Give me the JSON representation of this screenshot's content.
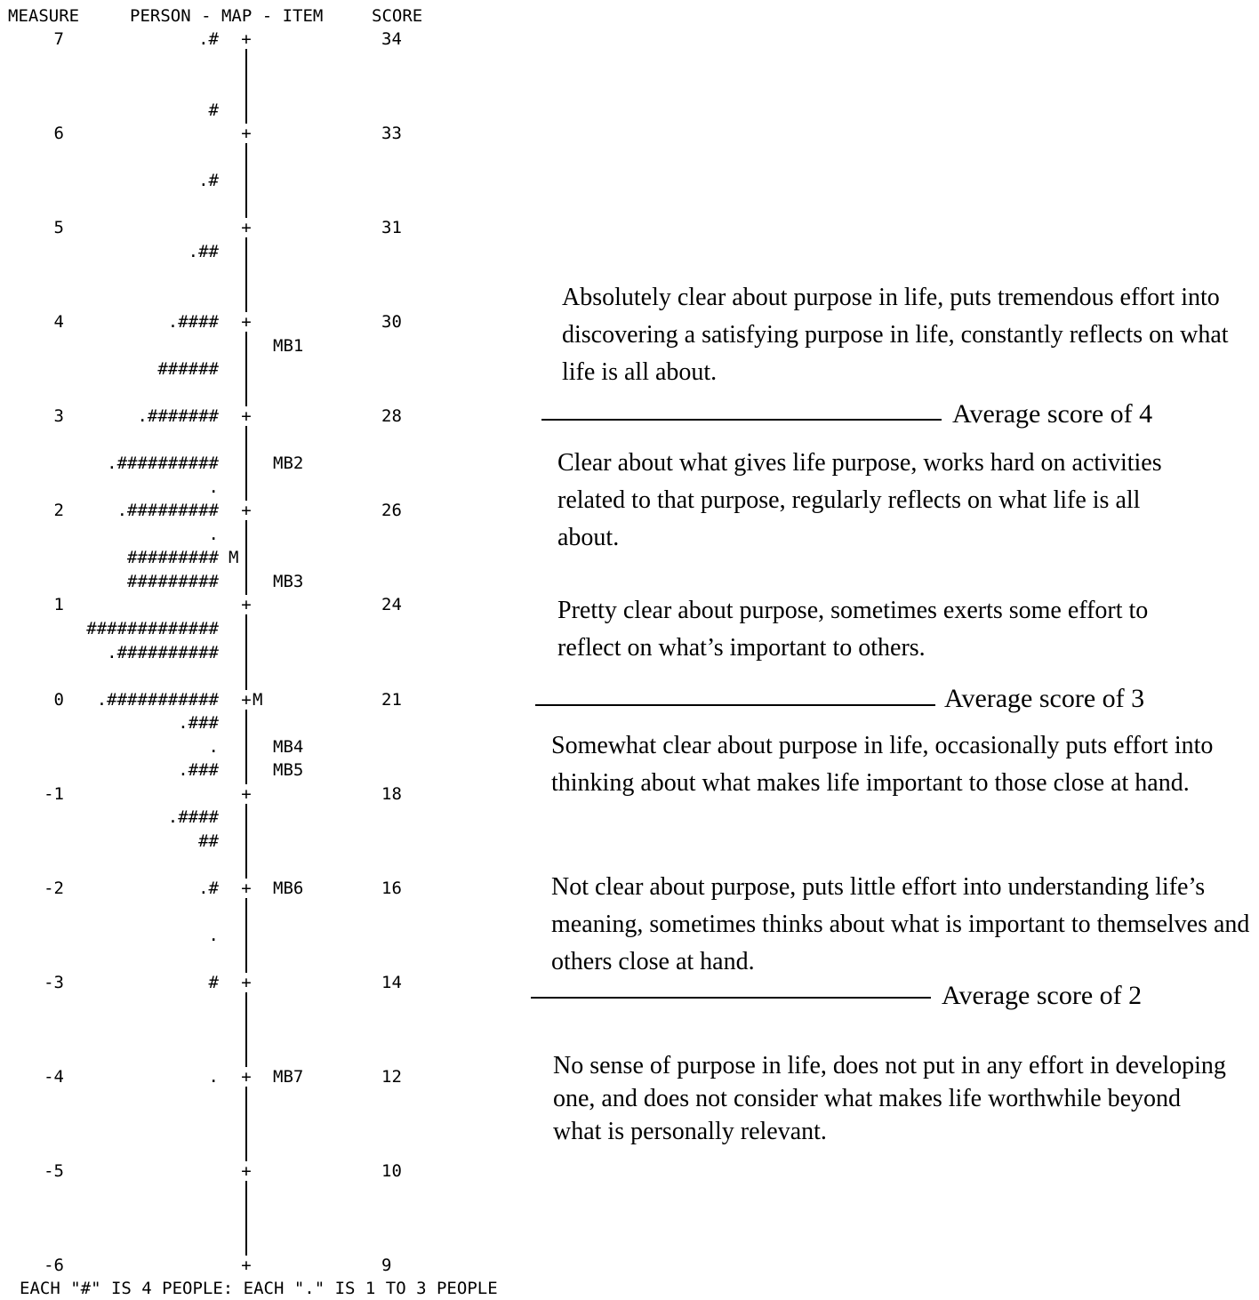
{
  "chart_data": {
    "type": "table",
    "headers": {
      "measure": "MEASURE",
      "map": "PERSON - MAP - ITEM",
      "score": "SCORE"
    },
    "measure_rows": [
      {
        "measure": "7",
        "score": "34"
      },
      {
        "measure": "6",
        "score": "33"
      },
      {
        "measure": "5",
        "score": "31"
      },
      {
        "measure": "4",
        "score": "30"
      },
      {
        "measure": "3",
        "score": "28"
      },
      {
        "measure": "2",
        "score": "26"
      },
      {
        "measure": "1",
        "score": "24"
      },
      {
        "measure": "0",
        "score": "21"
      },
      {
        "measure": "-1",
        "score": "18"
      },
      {
        "measure": "-2",
        "score": "16"
      },
      {
        "measure": "-3",
        "score": "14"
      },
      {
        "measure": "-4",
        "score": "12"
      },
      {
        "measure": "-5",
        "score": "10"
      },
      {
        "measure": "-6",
        "score": "9"
      }
    ],
    "person_rows": [
      {
        "measure": 7.0,
        "text": ".#"
      },
      {
        "measure": 6.25,
        "text": "#"
      },
      {
        "measure": 5.5,
        "text": ".#"
      },
      {
        "measure": 4.75,
        "text": ".##"
      },
      {
        "measure": 4.0,
        "text": ".####"
      },
      {
        "measure": 3.5,
        "text": "######"
      },
      {
        "measure": 3.0,
        "text": ".#######"
      },
      {
        "measure": 2.5,
        "text": ".##########"
      },
      {
        "measure": 2.25,
        "text": "."
      },
      {
        "measure": 2.0,
        "text": ".#########"
      },
      {
        "measure": 1.75,
        "text": "."
      },
      {
        "measure": 1.5,
        "text": "#########"
      },
      {
        "measure": 1.25,
        "text": "#########"
      },
      {
        "measure": 0.75,
        "text": "#############"
      },
      {
        "measure": 0.5,
        "text": ".##########"
      },
      {
        "measure": 0.0,
        "text": ".###########"
      },
      {
        "measure": -0.25,
        "text": ".###"
      },
      {
        "measure": -0.5,
        "text": "."
      },
      {
        "measure": -0.75,
        "text": ".###"
      },
      {
        "measure": -1.25,
        "text": ".####"
      },
      {
        "measure": -1.5,
        "text": "##"
      },
      {
        "measure": -2.0,
        "text": ".#"
      },
      {
        "measure": -2.5,
        "text": "."
      },
      {
        "measure": -3.0,
        "text": "#"
      },
      {
        "measure": -4.0,
        "text": "."
      }
    ],
    "person_mean": {
      "measure": 1.5,
      "text": "M"
    },
    "item_mean": {
      "measure": 0.0,
      "text": "M"
    },
    "items": [
      {
        "label": "MB1",
        "measure": 3.75
      },
      {
        "label": "MB2",
        "measure": 2.5
      },
      {
        "label": "MB3",
        "measure": 1.25
      },
      {
        "label": "MB4",
        "measure": -0.5
      },
      {
        "label": "MB5",
        "measure": -0.75
      },
      {
        "label": "MB6",
        "measure": -2.0
      },
      {
        "label": "MB7",
        "measure": -4.0
      }
    ],
    "ylim": [
      -6,
      7
    ],
    "footer": "EACH \"#\" IS 4 PEOPLE: EACH \".\" IS 1 TO 3 PEOPLE",
    "descriptions": [
      {
        "text": "Absolutely clear about purpose in life, puts tremendous effort into discovering a satisfying purpose in life, constantly reflects on what life is all about."
      },
      {
        "text": "Clear about what gives life purpose, works hard on activities related to that purpose, regularly reflects on what life is all about."
      },
      {
        "text": "Pretty clear about purpose, sometimes exerts some effort to reflect on what’s important to others."
      },
      {
        "text": "Somewhat clear about purpose in life, occasionally puts effort into thinking about what makes life important to those close at hand."
      },
      {
        "text": "Not clear about purpose, puts little effort into understanding life’s meaning, sometimes thinks about what is important to themselves and others close at hand."
      },
      {
        "text": "No sense of purpose in life, does not put in any effort in developing one, and does not consider what makes life worthwhile beyond what is personally relevant."
      }
    ],
    "thresholds": [
      {
        "label": "Average score of 4"
      },
      {
        "label": "Average score of 3"
      },
      {
        "label": "Average score of 2"
      }
    ]
  }
}
